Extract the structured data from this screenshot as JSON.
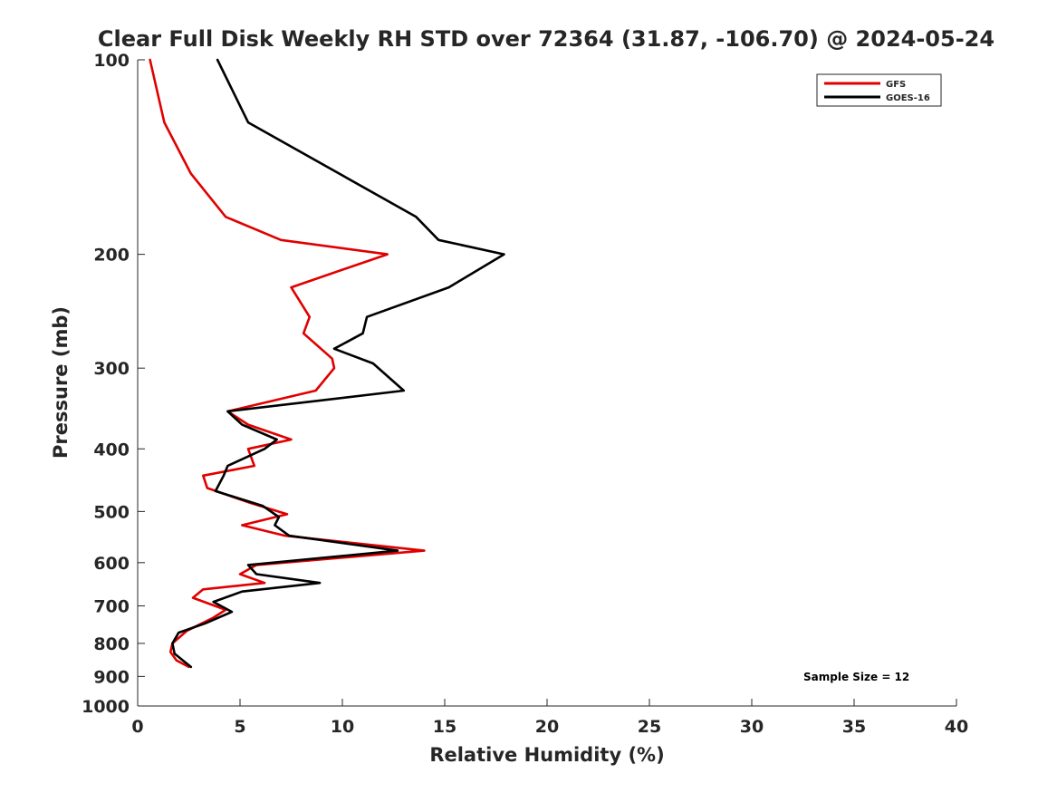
{
  "chart_data": {
    "type": "line",
    "title": "Clear Full Disk Weekly RH STD over 72364 (31.87, -106.70) @ 2024-05-24",
    "xlabel": "Relative Humidity (%)",
    "ylabel": "Pressure (mb)",
    "xlim": [
      0,
      40
    ],
    "ylim": [
      1000,
      100
    ],
    "yscale": "log",
    "y_reversed": true,
    "grid": false,
    "legend_position": "top-right",
    "x_ticks": [
      "0",
      "5",
      "10",
      "15",
      "20",
      "25",
      "30",
      "35",
      "40"
    ],
    "y_ticks": [
      "100",
      "200",
      "300",
      "400",
      "500",
      "600",
      "700",
      "800",
      "900",
      "1000"
    ],
    "annotation": "Sample Size = 12",
    "series": [
      {
        "name": "GFS",
        "color": "#e00000",
        "points": [
          [
            0.6,
            100
          ],
          [
            1.3,
            125
          ],
          [
            2.6,
            150
          ],
          [
            4.3,
            175
          ],
          [
            7.0,
            190
          ],
          [
            12.2,
            200
          ],
          [
            7.5,
            225
          ],
          [
            8.4,
            250
          ],
          [
            8.1,
            265
          ],
          [
            9.5,
            290
          ],
          [
            9.6,
            300
          ],
          [
            8.7,
            325
          ],
          [
            4.4,
            350
          ],
          [
            5.4,
            367
          ],
          [
            7.5,
            387
          ],
          [
            5.4,
            400
          ],
          [
            5.7,
            425
          ],
          [
            3.2,
            440
          ],
          [
            3.4,
            460
          ],
          [
            5.5,
            485
          ],
          [
            7.3,
            505
          ],
          [
            5.1,
            525
          ],
          [
            7.2,
            545
          ],
          [
            14.0,
            575
          ],
          [
            5.8,
            605
          ],
          [
            5.0,
            625
          ],
          [
            6.2,
            645
          ],
          [
            3.2,
            660
          ],
          [
            2.7,
            680
          ],
          [
            4.3,
            710
          ],
          [
            3.7,
            730
          ],
          [
            2.4,
            765
          ],
          [
            1.7,
            800
          ],
          [
            1.6,
            825
          ],
          [
            1.9,
            850
          ],
          [
            2.5,
            870
          ]
        ]
      },
      {
        "name": "GOES-16",
        "color": "#000000",
        "points": [
          [
            3.9,
            100
          ],
          [
            5.4,
            125
          ],
          [
            13.6,
            175
          ],
          [
            14.7,
            190
          ],
          [
            17.9,
            200
          ],
          [
            15.2,
            225
          ],
          [
            11.2,
            250
          ],
          [
            11.0,
            265
          ],
          [
            9.6,
            280
          ],
          [
            11.5,
            295
          ],
          [
            13.0,
            325
          ],
          [
            4.4,
            350
          ],
          [
            5.1,
            367
          ],
          [
            6.8,
            387
          ],
          [
            6.2,
            400
          ],
          [
            4.4,
            425
          ],
          [
            4.2,
            440
          ],
          [
            3.8,
            465
          ],
          [
            6.1,
            490
          ],
          [
            6.9,
            510
          ],
          [
            6.7,
            525
          ],
          [
            7.4,
            545
          ],
          [
            12.7,
            575
          ],
          [
            5.4,
            605
          ],
          [
            5.8,
            625
          ],
          [
            8.9,
            645
          ],
          [
            5.1,
            665
          ],
          [
            3.7,
            690
          ],
          [
            4.6,
            715
          ],
          [
            3.3,
            745
          ],
          [
            2.0,
            770
          ],
          [
            1.7,
            800
          ],
          [
            1.8,
            830
          ],
          [
            2.6,
            870
          ]
        ]
      }
    ]
  }
}
